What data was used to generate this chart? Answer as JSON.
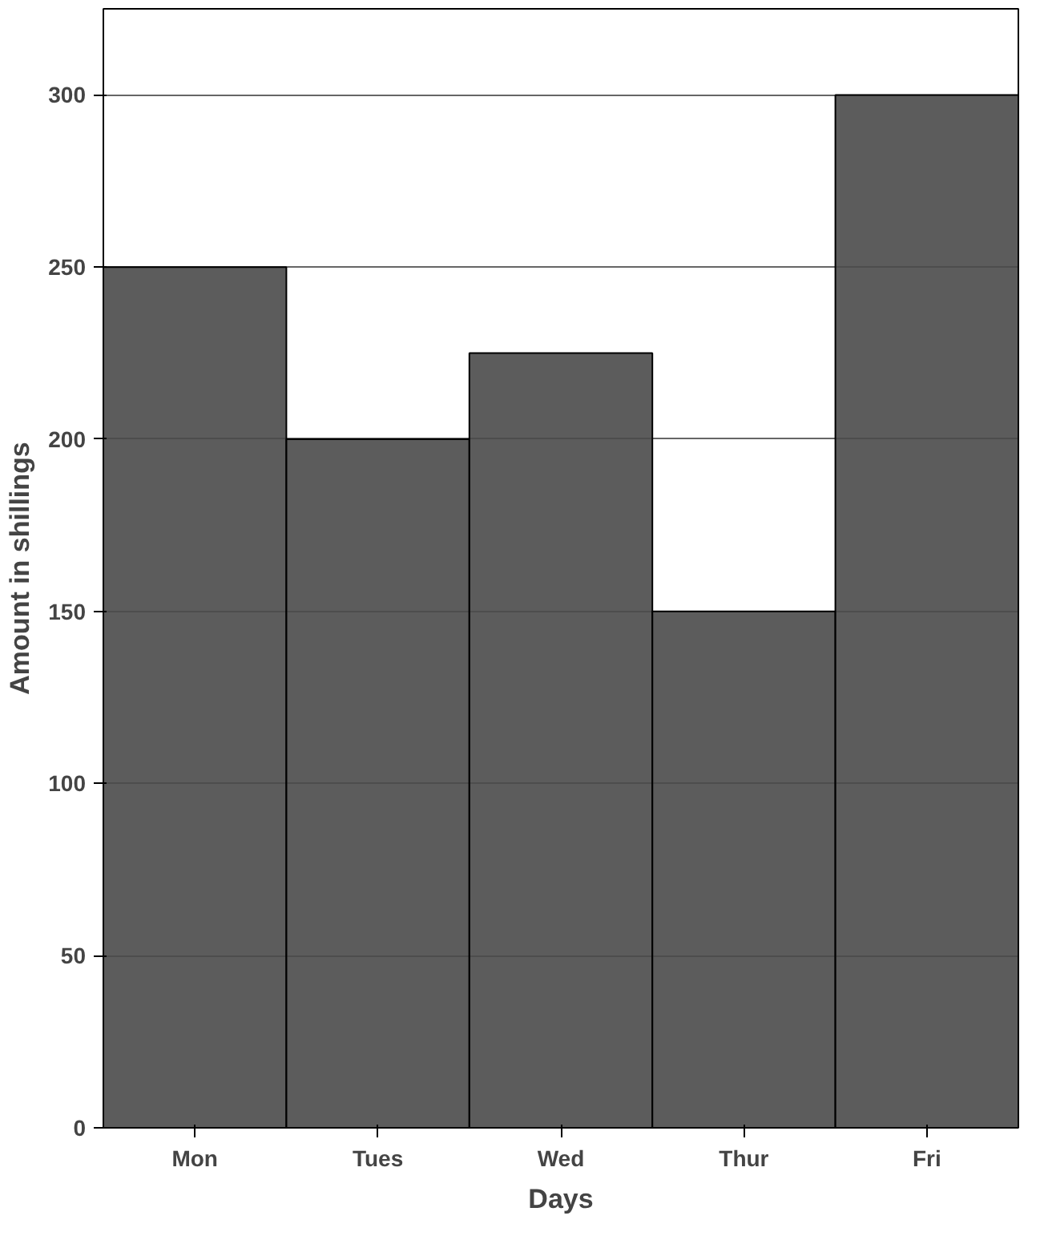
{
  "chart_data": {
    "type": "bar",
    "xlabel": "Days",
    "ylabel": "Amount in shillings",
    "categories": [
      "Mon",
      "Tues",
      "Wed",
      "Thur",
      "Fri"
    ],
    "values": [
      250,
      200,
      225,
      150,
      300
    ],
    "color": "#4a4a4a",
    "ylim": [
      0,
      325
    ],
    "yticks": [
      0,
      50,
      100,
      150,
      200,
      250,
      300
    ],
    "grid": true
  }
}
